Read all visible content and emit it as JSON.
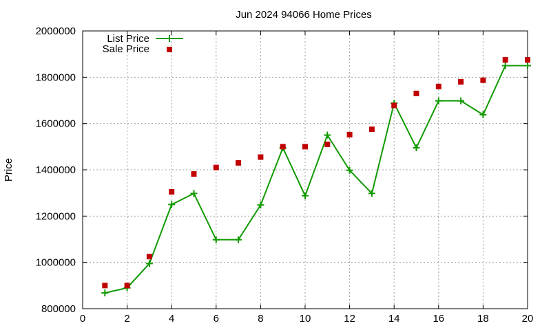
{
  "chart_data": {
    "type": "line",
    "title": "Jun 2024 94066 Home Prices",
    "xlabel": "",
    "ylabel": "Price",
    "xlim": [
      0,
      20
    ],
    "ylim": [
      800000,
      2000000
    ],
    "x_ticks": [
      0,
      2,
      4,
      6,
      8,
      10,
      12,
      14,
      16,
      18,
      20
    ],
    "y_ticks": [
      800000,
      1000000,
      1200000,
      1400000,
      1600000,
      1800000,
      2000000
    ],
    "grid": true,
    "legend_position": "top-left",
    "series": [
      {
        "name": "List Price",
        "style": "line-with-plus-markers",
        "color": "#109a00",
        "x": [
          1,
          2,
          3,
          4,
          5,
          6,
          7,
          8,
          9,
          10,
          11,
          12,
          13,
          14,
          15,
          16,
          17,
          18,
          19,
          20
        ],
        "values": [
          868000,
          890000,
          995000,
          1250000,
          1298000,
          1098000,
          1098000,
          1248000,
          1495000,
          1288000,
          1550000,
          1398000,
          1298000,
          1688000,
          1495000,
          1698000,
          1698000,
          1638000,
          1850000,
          1850000
        ]
      },
      {
        "name": "Sale Price",
        "style": "square-markers",
        "color": "#c00000",
        "x": [
          1,
          2,
          3,
          4,
          5,
          6,
          7,
          8,
          9,
          10,
          11,
          12,
          13,
          14,
          15,
          16,
          17,
          18,
          19,
          20
        ],
        "values": [
          900000,
          900000,
          1025000,
          1305000,
          1382000,
          1410000,
          1430000,
          1455000,
          1500000,
          1500000,
          1510000,
          1552000,
          1575000,
          1678000,
          1730000,
          1760000,
          1780000,
          1787000,
          1875000,
          1875000
        ]
      }
    ]
  }
}
